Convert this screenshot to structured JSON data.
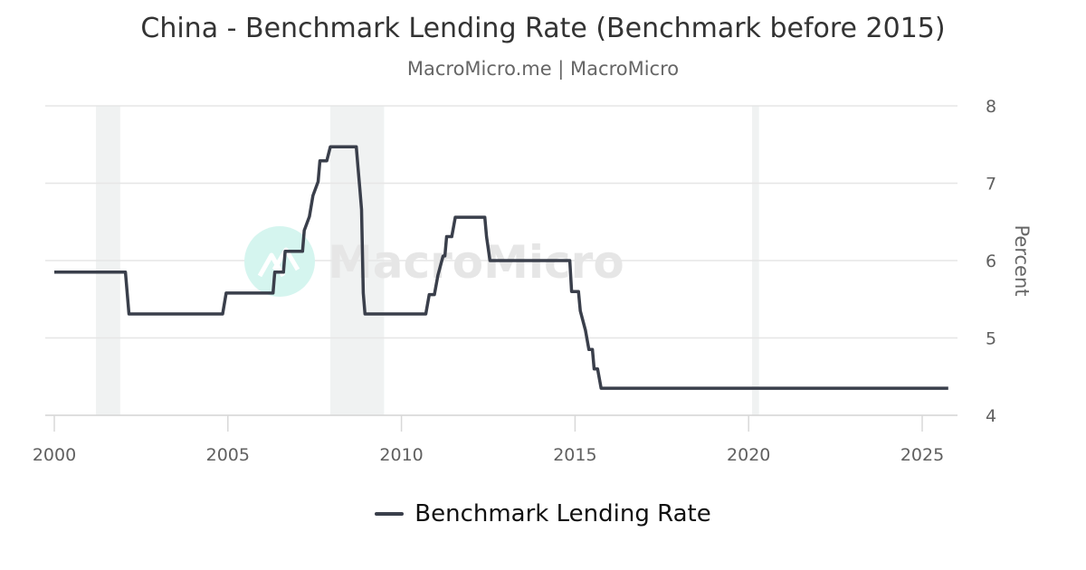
{
  "header": {
    "title": "China - Benchmark Lending Rate (Benchmark before 2015)",
    "subtitle": "MacroMicro.me | MacroMicro"
  },
  "watermark": {
    "text": "MacroMicro",
    "icon": "macromicro-logo-icon",
    "color": "#d5f5ef"
  },
  "legend": {
    "items": [
      {
        "label": "Benchmark Lending Rate",
        "color": "#3a3f4b"
      }
    ]
  },
  "colors": {
    "line": "#3a3f4b",
    "grid": "#e6e6e6",
    "recession_band": "#f0f2f2"
  },
  "chart_data": {
    "type": "line",
    "title": "China - Benchmark Lending Rate (Benchmark before 2015)",
    "subtitle": "MacroMicro.me | MacroMicro",
    "xlabel": "",
    "ylabel": "Percent",
    "y_axis_position": "right",
    "xlim": [
      1999.75,
      2026.0
    ],
    "ylim": [
      4,
      8
    ],
    "x_ticks": [
      2000,
      2005,
      2010,
      2015,
      2020,
      2025
    ],
    "x_tick_labels": [
      "2000",
      "2005",
      "2010",
      "2015",
      "2020",
      "2025"
    ],
    "y_ticks": [
      4,
      5,
      6,
      7,
      8
    ],
    "y_tick_labels": [
      "4",
      "5",
      "6",
      "7",
      "8"
    ],
    "grid": {
      "horizontal": true,
      "vertical": false
    },
    "legend_position": "bottom",
    "shaded_regions": [
      {
        "label": "recession",
        "start": 2001.2,
        "end": 2001.9
      },
      {
        "label": "recession",
        "start": 2007.95,
        "end": 2009.5
      },
      {
        "label": "recession",
        "start": 2020.1,
        "end": 2020.3
      }
    ],
    "series": [
      {
        "name": "Benchmark Lending Rate",
        "color": "#3a3f4b",
        "step": true,
        "points": [
          [
            2000.0,
            5.85
          ],
          [
            2002.05,
            5.85
          ],
          [
            2002.15,
            5.31
          ],
          [
            2004.85,
            5.31
          ],
          [
            2004.95,
            5.58
          ],
          [
            2006.3,
            5.58
          ],
          [
            2006.35,
            5.85
          ],
          [
            2006.6,
            5.85
          ],
          [
            2006.65,
            6.12
          ],
          [
            2007.15,
            6.12
          ],
          [
            2007.2,
            6.39
          ],
          [
            2007.35,
            6.57
          ],
          [
            2007.45,
            6.84
          ],
          [
            2007.6,
            7.02
          ],
          [
            2007.65,
            7.29
          ],
          [
            2007.85,
            7.29
          ],
          [
            2007.95,
            7.47
          ],
          [
            2008.7,
            7.47
          ],
          [
            2008.75,
            7.2
          ],
          [
            2008.8,
            6.93
          ],
          [
            2008.85,
            6.66
          ],
          [
            2008.9,
            5.58
          ],
          [
            2008.95,
            5.31
          ],
          [
            2010.7,
            5.31
          ],
          [
            2010.8,
            5.56
          ],
          [
            2010.95,
            5.56
          ],
          [
            2011.05,
            5.81
          ],
          [
            2011.2,
            6.06
          ],
          [
            2011.25,
            6.06
          ],
          [
            2011.3,
            6.31
          ],
          [
            2011.45,
            6.31
          ],
          [
            2011.55,
            6.56
          ],
          [
            2012.4,
            6.56
          ],
          [
            2012.45,
            6.31
          ],
          [
            2012.55,
            6.0
          ],
          [
            2014.85,
            6.0
          ],
          [
            2014.9,
            5.6
          ],
          [
            2015.1,
            5.6
          ],
          [
            2015.15,
            5.35
          ],
          [
            2015.3,
            5.1
          ],
          [
            2015.4,
            4.85
          ],
          [
            2015.5,
            4.85
          ],
          [
            2015.55,
            4.6
          ],
          [
            2015.65,
            4.6
          ],
          [
            2015.75,
            4.35
          ],
          [
            2025.75,
            4.35
          ]
        ]
      }
    ]
  }
}
